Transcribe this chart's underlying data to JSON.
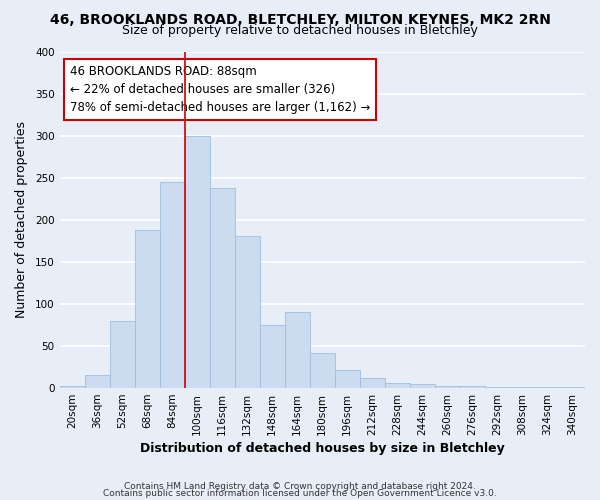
{
  "title": "46, BROOKLANDS ROAD, BLETCHLEY, MILTON KEYNES, MK2 2RN",
  "subtitle": "Size of property relative to detached houses in Bletchley",
  "xlabel": "Distribution of detached houses by size in Bletchley",
  "ylabel": "Number of detached properties",
  "bar_color": "#ccdcf0",
  "bar_edge_color": "#a0bedd",
  "categories": [
    "20sqm",
    "36sqm",
    "52sqm",
    "68sqm",
    "84sqm",
    "100sqm",
    "116sqm",
    "132sqm",
    "148sqm",
    "164sqm",
    "180sqm",
    "196sqm",
    "212sqm",
    "228sqm",
    "244sqm",
    "260sqm",
    "276sqm",
    "292sqm",
    "308sqm",
    "324sqm",
    "340sqm"
  ],
  "values": [
    2,
    15,
    80,
    188,
    245,
    300,
    238,
    181,
    75,
    90,
    42,
    22,
    12,
    6,
    5,
    3,
    2,
    1,
    1,
    1,
    1
  ],
  "ylim": [
    0,
    400
  ],
  "yticks": [
    0,
    50,
    100,
    150,
    200,
    250,
    300,
    350,
    400
  ],
  "annotation_title": "46 BROOKLANDS ROAD: 88sqm",
  "annotation_line1": "← 22% of detached houses are smaller (326)",
  "annotation_line2": "78% of semi-detached houses are larger (1,162) →",
  "footer1": "Contains HM Land Registry data © Crown copyright and database right 2024.",
  "footer2": "Contains public sector information licensed under the Open Government Licence v3.0.",
  "bg_color": "#e8eef7",
  "grid_color": "#ffffff",
  "annotation_box_color": "#ffffff",
  "annotation_box_edge": "#cc0000",
  "red_line_color": "#cc0000",
  "title_fontsize": 10,
  "subtitle_fontsize": 9,
  "axis_label_fontsize": 9,
  "tick_fontsize": 7.5,
  "annotation_fontsize": 8.5,
  "footer_fontsize": 6.5
}
